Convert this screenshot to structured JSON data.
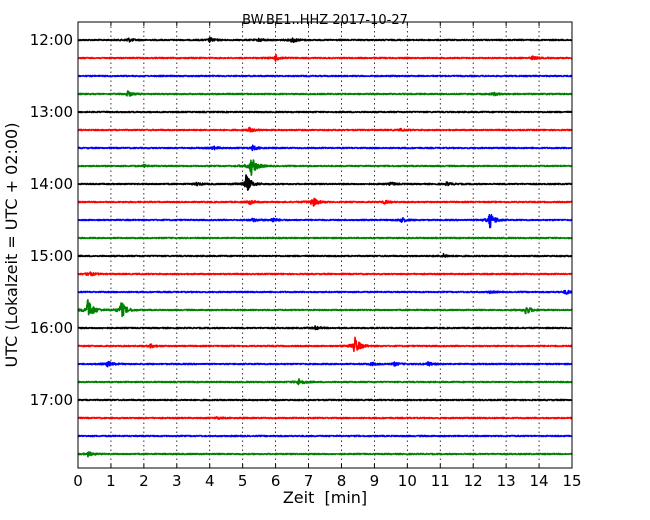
{
  "chart_data": {
    "type": "line",
    "title": "BW.BE1..HHZ 2017-10-27",
    "xlabel": "Zeit  [min]",
    "ylabel": "UTC (Lokalzeit = UTC + 02:00)",
    "xlim": [
      0,
      15
    ],
    "x_ticks": [
      "0",
      "1",
      "2",
      "3",
      "4",
      "5",
      "6",
      "7",
      "8",
      "9",
      "10",
      "11",
      "12",
      "13",
      "14",
      "15"
    ],
    "y_tick_labels": [
      "12:00",
      "13:00",
      "14:00",
      "15:00",
      "16:00",
      "17:00"
    ],
    "grid": true,
    "trace_colors": [
      "#000000",
      "#ff0000",
      "#0000ff",
      "#008000"
    ],
    "series": [
      {
        "start": "12:00",
        "events": [
          {
            "t": 1.5,
            "amp": 0.4
          },
          {
            "t": 4.0,
            "amp": 0.4
          },
          {
            "t": 5.5,
            "amp": 0.3
          },
          {
            "t": 6.5,
            "amp": 0.5
          }
        ]
      },
      {
        "start": "12:15",
        "events": [
          {
            "t": 6.0,
            "amp": 0.5
          },
          {
            "t": 13.8,
            "amp": 0.3
          }
        ]
      },
      {
        "start": "12:30",
        "events": []
      },
      {
        "start": "12:45",
        "events": [
          {
            "t": 1.5,
            "amp": 0.5
          },
          {
            "t": 12.6,
            "amp": 0.3
          }
        ]
      },
      {
        "start": "13:00",
        "events": []
      },
      {
        "start": "13:15",
        "events": [
          {
            "t": 5.2,
            "amp": 0.4
          },
          {
            "t": 9.8,
            "amp": 0.2
          }
        ]
      },
      {
        "start": "13:30",
        "events": [
          {
            "t": 4.1,
            "amp": 0.3
          },
          {
            "t": 5.3,
            "amp": 0.4
          }
        ]
      },
      {
        "start": "13:45",
        "events": [
          {
            "t": 5.25,
            "amp": 1.8
          },
          {
            "t": 2.0,
            "amp": 0.2
          }
        ]
      },
      {
        "start": "14:00",
        "events": [
          {
            "t": 5.1,
            "amp": 1.7
          },
          {
            "t": 3.6,
            "amp": 0.3
          },
          {
            "t": 9.5,
            "amp": 0.3
          },
          {
            "t": 11.2,
            "amp": 0.3
          }
        ]
      },
      {
        "start": "14:15",
        "events": [
          {
            "t": 7.1,
            "amp": 1.0
          },
          {
            "t": 5.2,
            "amp": 0.4
          },
          {
            "t": 9.3,
            "amp": 0.3
          }
        ]
      },
      {
        "start": "14:30",
        "events": [
          {
            "t": 12.5,
            "amp": 1.4
          },
          {
            "t": 9.8,
            "amp": 0.5
          },
          {
            "t": 5.9,
            "amp": 0.4
          },
          {
            "t": 5.3,
            "amp": 0.3
          }
        ]
      },
      {
        "start": "14:45",
        "events": []
      },
      {
        "start": "15:00",
        "events": [
          {
            "t": 11.1,
            "amp": 0.3
          }
        ]
      },
      {
        "start": "15:15",
        "events": [
          {
            "t": 0.3,
            "amp": 0.5
          }
        ]
      },
      {
        "start": "15:30",
        "events": [
          {
            "t": 14.8,
            "amp": 0.4
          },
          {
            "t": 12.5,
            "amp": 0.2
          }
        ]
      },
      {
        "start": "15:45",
        "events": [
          {
            "t": 0.3,
            "amp": 2.0
          },
          {
            "t": 1.3,
            "amp": 1.6
          },
          {
            "t": 13.6,
            "amp": 0.8
          }
        ]
      },
      {
        "start": "16:00",
        "events": [
          {
            "t": 7.2,
            "amp": 0.3
          }
        ]
      },
      {
        "start": "16:15",
        "events": [
          {
            "t": 8.4,
            "amp": 1.6
          },
          {
            "t": 2.2,
            "amp": 0.3
          }
        ]
      },
      {
        "start": "16:30",
        "events": [
          {
            "t": 0.9,
            "amp": 0.5
          },
          {
            "t": 8.9,
            "amp": 0.3
          },
          {
            "t": 9.6,
            "amp": 0.3
          },
          {
            "t": 10.6,
            "amp": 0.4
          }
        ]
      },
      {
        "start": "16:45",
        "events": [
          {
            "t": 6.7,
            "amp": 0.6
          }
        ]
      },
      {
        "start": "17:00",
        "events": []
      },
      {
        "start": "17:15",
        "events": [
          {
            "t": 4.2,
            "amp": 0.2
          }
        ]
      },
      {
        "start": "17:30",
        "events": []
      },
      {
        "start": "17:45",
        "events": [
          {
            "t": 0.3,
            "amp": 0.4
          }
        ]
      }
    ]
  }
}
